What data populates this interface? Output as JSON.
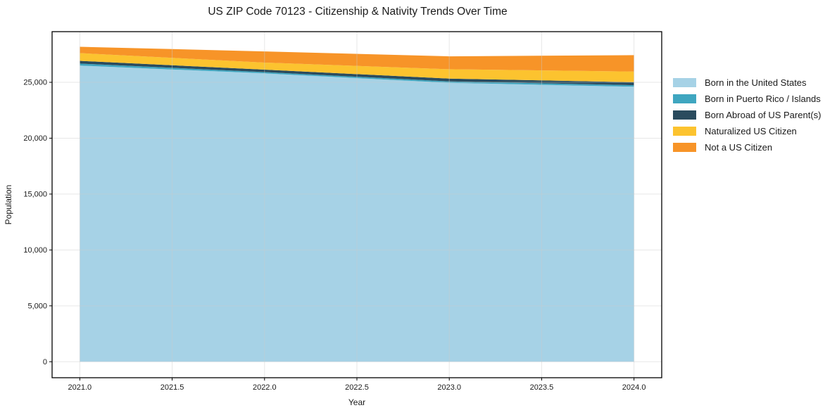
{
  "chart_data": {
    "type": "area",
    "stacked": true,
    "title": "US ZIP Code 70123 - Citizenship & Nativity Trends Over Time",
    "xlabel": "Year",
    "ylabel": "Population",
    "x": [
      2021,
      2022,
      2023,
      2024
    ],
    "series": [
      {
        "name": "Born in the United States",
        "color": "#a6d2e6",
        "values": [
          26500,
          25800,
          24950,
          24600
        ]
      },
      {
        "name": "Born in Puerto Rico / Islands",
        "color": "#3fa6c0",
        "values": [
          170,
          110,
          130,
          140
        ]
      },
      {
        "name": "Born Abroad of US Parent(s)",
        "color": "#2a4b5e",
        "values": [
          250,
          220,
          250,
          270
        ]
      },
      {
        "name": "Naturalized US Citizen",
        "color": "#fcc32f",
        "values": [
          690,
          630,
          840,
          950
        ]
      },
      {
        "name": "Not a US Citizen",
        "color": "#f79428",
        "values": [
          570,
          1000,
          1150,
          1470
        ]
      }
    ],
    "xlim": [
      2020.85,
      2024.15
    ],
    "ylim": [
      -1430,
      29530
    ],
    "xticks": {
      "values": [
        2021.0,
        2021.5,
        2022.0,
        2022.5,
        2023.0,
        2023.5,
        2024.0
      ],
      "labels": [
        "2021.0",
        "2021.5",
        "2022.0",
        "2022.5",
        "2023.0",
        "2023.5",
        "2024.0"
      ]
    },
    "yticks": {
      "values": [
        0,
        5000,
        10000,
        15000,
        20000,
        25000
      ],
      "labels": [
        "0",
        "5,000",
        "10,000",
        "15,000",
        "20,000",
        "25,000"
      ]
    },
    "grid": true,
    "legend_position": "right-outside",
    "colors": {
      "spine": "#000000",
      "grid": "#cbcbcb",
      "background": "#ffffff"
    }
  }
}
